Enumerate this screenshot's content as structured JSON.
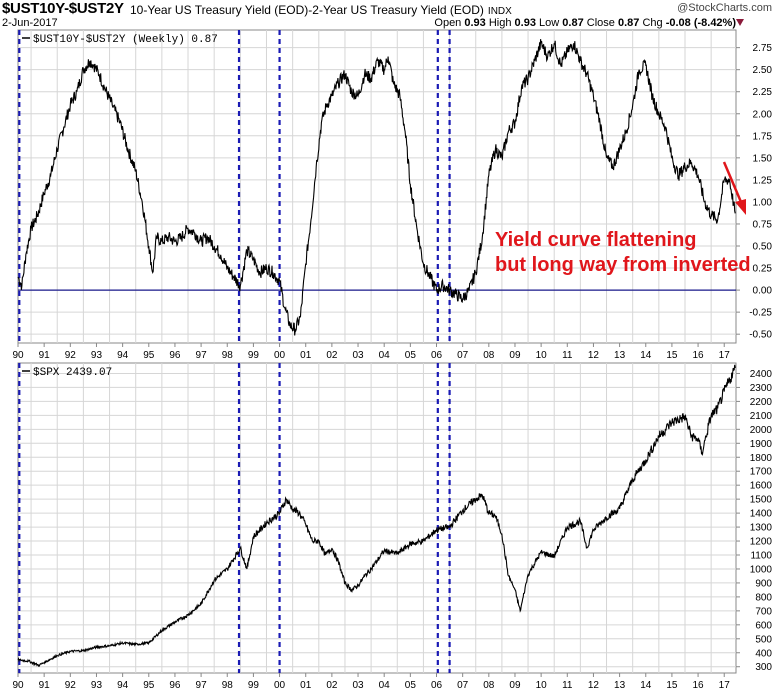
{
  "header": {
    "symbol": "$UST10Y-$UST2Y",
    "description": "10-Year US Treasury Yield (EOD)-2-Year US Treasury Yield (EOD)",
    "index_tag": "INDX",
    "brand": "@StockCharts.com",
    "date": "2-Jun-2017",
    "open_label": "Open",
    "open": "0.93",
    "high_label": "High",
    "high": "0.93",
    "low_label": "Low",
    "low": "0.87",
    "close_label": "Close",
    "close": "0.87",
    "chg_label": "Chg",
    "chg": "-0.08 (-8.42%)"
  },
  "colors": {
    "line": "#000000",
    "recession": "#1a1ab4",
    "zero_line": "#1a1a8c",
    "annotation": "#e0161b",
    "grid": "#d6d6d6"
  },
  "annotation": {
    "line1": "Yield curve flattening",
    "line2": "but long way from inverted"
  },
  "x_axis": {
    "start": 1990.0,
    "end": 2017.45,
    "years": [
      1990,
      1991,
      1992,
      1993,
      1994,
      1995,
      1996,
      1997,
      1998,
      1999,
      2000,
      2001,
      2002,
      2003,
      2004,
      2005,
      2006,
      2007,
      2008,
      2009,
      2010,
      2011,
      2012,
      2013,
      2014,
      2015,
      2016,
      2017
    ],
    "labels": [
      "90",
      "91",
      "92",
      "93",
      "94",
      "95",
      "96",
      "97",
      "98",
      "99",
      "00",
      "01",
      "02",
      "03",
      "04",
      "05",
      "06",
      "07",
      "08",
      "09",
      "10",
      "11",
      "12",
      "13",
      "14",
      "15",
      "16",
      "17"
    ]
  },
  "recession_markers": [
    1990.05,
    1998.45,
    2000.0,
    2006.05,
    2006.5
  ],
  "chart_data": [
    {
      "type": "line",
      "title": "$UST10Y-$UST2Y (Weekly) 0.87",
      "legend": "top-left",
      "ylim": [
        -0.6,
        2.95
      ],
      "yticks": [
        2.75,
        2.5,
        2.25,
        2.0,
        1.75,
        1.5,
        1.25,
        1.0,
        0.75,
        0.5,
        0.25,
        0.0,
        -0.25,
        -0.5
      ],
      "ytick_labels": [
        "2.75",
        "2.50",
        "2.25",
        "2.00",
        "1.75",
        "1.50",
        "1.25",
        "1.00",
        "0.75",
        "0.50",
        "0.25",
        "0.00",
        "-0.25",
        "-0.50"
      ],
      "reference_line": 0,
      "x": [
        1990.0,
        1990.15,
        1990.3,
        1990.5,
        1990.75,
        1991.0,
        1991.25,
        1991.5,
        1991.75,
        1992.0,
        1992.25,
        1992.5,
        1992.75,
        1992.9,
        1993.1,
        1993.3,
        1993.6,
        1993.9,
        1994.2,
        1994.5,
        1994.75,
        1995.0,
        1995.15,
        1995.3,
        1995.5,
        1995.75,
        1996.0,
        1996.25,
        1996.5,
        1996.75,
        1997.0,
        1997.25,
        1997.5,
        1997.75,
        1998.0,
        1998.25,
        1998.5,
        1998.75,
        1999.0,
        1999.25,
        1999.5,
        1999.75,
        2000.0,
        2000.2,
        2000.4,
        2000.6,
        2000.8,
        2001.0,
        2001.2,
        2001.4,
        2001.6,
        2001.8,
        2002.0,
        2002.25,
        2002.5,
        2002.75,
        2003.0,
        2003.25,
        2003.5,
        2003.75,
        2004.0,
        2004.15,
        2004.35,
        2004.6,
        2004.8,
        2005.0,
        2005.25,
        2005.5,
        2005.75,
        2006.0,
        2006.25,
        2006.5,
        2006.75,
        2007.0,
        2007.25,
        2007.5,
        2007.75,
        2008.0,
        2008.25,
        2008.5,
        2008.75,
        2009.0,
        2009.25,
        2009.5,
        2009.75,
        2010.0,
        2010.25,
        2010.5,
        2010.75,
        2011.0,
        2011.25,
        2011.5,
        2011.75,
        2012.0,
        2012.25,
        2012.5,
        2012.75,
        2013.0,
        2013.25,
        2013.5,
        2013.75,
        2014.0,
        2014.25,
        2014.5,
        2014.75,
        2015.0,
        2015.25,
        2015.5,
        2015.75,
        2016.0,
        2016.25,
        2016.5,
        2016.75,
        2017.0,
        2017.2,
        2017.42
      ],
      "y": [
        0.15,
        0.05,
        0.4,
        0.7,
        0.85,
        1.1,
        1.3,
        1.6,
        1.85,
        2.1,
        2.25,
        2.5,
        2.6,
        2.55,
        2.45,
        2.3,
        2.1,
        1.9,
        1.6,
        1.35,
        1.0,
        0.5,
        0.2,
        0.6,
        0.55,
        0.6,
        0.55,
        0.6,
        0.7,
        0.65,
        0.55,
        0.6,
        0.5,
        0.4,
        0.25,
        0.15,
        0.05,
        0.45,
        0.35,
        0.2,
        0.25,
        0.2,
        0.1,
        -0.2,
        -0.4,
        -0.45,
        -0.3,
        0.3,
        0.8,
        1.4,
        1.9,
        2.1,
        2.2,
        2.35,
        2.45,
        2.25,
        2.2,
        2.45,
        2.4,
        2.6,
        2.5,
        2.65,
        2.35,
        2.2,
        1.8,
        1.2,
        0.7,
        0.3,
        0.15,
        0.0,
        0.05,
        0.0,
        -0.05,
        -0.1,
        0.0,
        0.2,
        0.6,
        1.3,
        1.6,
        1.5,
        1.8,
        1.9,
        2.3,
        2.4,
        2.6,
        2.8,
        2.65,
        2.8,
        2.55,
        2.7,
        2.8,
        2.6,
        2.45,
        2.2,
        1.9,
        1.5,
        1.4,
        1.6,
        1.8,
        2.1,
        2.5,
        2.55,
        2.2,
        2.0,
        1.85,
        1.5,
        1.3,
        1.4,
        1.45,
        1.3,
        1.0,
        0.85,
        0.8,
        1.25,
        1.25,
        0.87
      ]
    },
    {
      "type": "line",
      "title": "$SPX 2439.07",
      "legend": "top-left",
      "ylim": [
        255,
        2475
      ],
      "yticks": [
        300,
        400,
        500,
        600,
        700,
        800,
        900,
        1000,
        1100,
        1200,
        1300,
        1400,
        1500,
        1600,
        1700,
        1800,
        1900,
        2000,
        2100,
        2200,
        2300,
        2400
      ],
      "ytick_labels": [
        "300",
        "400",
        "500",
        "600",
        "700",
        "800",
        "900",
        "1000",
        "1100",
        "1200",
        "1300",
        "1400",
        "1500",
        "1600",
        "1700",
        "1800",
        "1900",
        "2000",
        "2100",
        "2200",
        "2300",
        "2400"
      ],
      "x": [
        1990.0,
        1990.4,
        1990.8,
        1991.0,
        1991.5,
        1992.0,
        1992.5,
        1993.0,
        1993.5,
        1994.0,
        1994.5,
        1995.0,
        1995.5,
        1996.0,
        1996.5,
        1997.0,
        1997.5,
        1998.0,
        1998.5,
        1998.75,
        1999.0,
        1999.5,
        2000.0,
        2000.25,
        2000.5,
        2000.75,
        2001.0,
        2001.25,
        2001.5,
        2001.75,
        2002.0,
        2002.25,
        2002.5,
        2002.75,
        2003.0,
        2003.25,
        2003.5,
        2004.0,
        2004.5,
        2005.0,
        2005.5,
        2006.0,
        2006.5,
        2007.0,
        2007.5,
        2007.75,
        2008.0,
        2008.25,
        2008.5,
        2008.75,
        2009.0,
        2009.2,
        2009.5,
        2010.0,
        2010.5,
        2011.0,
        2011.5,
        2011.75,
        2012.0,
        2012.5,
        2013.0,
        2013.5,
        2014.0,
        2014.5,
        2015.0,
        2015.5,
        2015.75,
        2016.0,
        2016.15,
        2016.5,
        2016.75,
        2017.0,
        2017.42
      ],
      "y": [
        350,
        340,
        310,
        330,
        380,
        410,
        415,
        440,
        450,
        470,
        460,
        470,
        560,
        620,
        670,
        750,
        920,
        1000,
        1150,
        1000,
        1230,
        1330,
        1400,
        1500,
        1430,
        1400,
        1320,
        1200,
        1200,
        1100,
        1150,
        1050,
        900,
        850,
        880,
        950,
        1000,
        1130,
        1110,
        1180,
        1200,
        1280,
        1300,
        1420,
        1500,
        1530,
        1400,
        1380,
        1250,
        950,
        850,
        700,
        960,
        1120,
        1090,
        1300,
        1340,
        1150,
        1280,
        1370,
        1430,
        1640,
        1780,
        1950,
        2050,
        2090,
        1950,
        1930,
        1830,
        2100,
        2150,
        2270,
        2439
      ]
    }
  ]
}
